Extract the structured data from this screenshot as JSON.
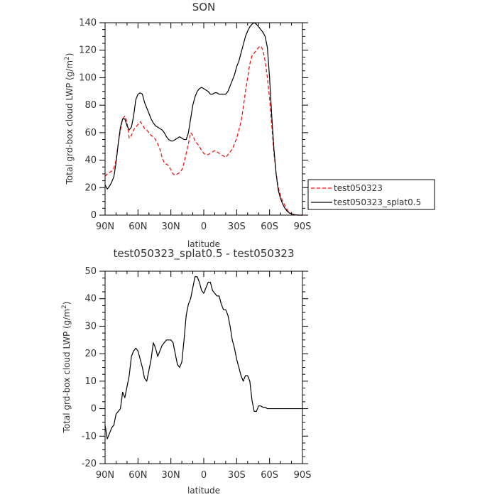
{
  "chart_data": [
    {
      "type": "line",
      "title": "SON",
      "xlabel": "latitude",
      "ylabel": "Total grd-box cloud LWP (g/m",
      "ylabel_sup": "2",
      "ylabel_end": ")",
      "xlim": [
        -90,
        90
      ],
      "ylim": [
        0,
        140
      ],
      "x_ticks": [
        -90,
        -60,
        -30,
        0,
        30,
        60,
        90
      ],
      "x_tick_labels": [
        "90N",
        "60N",
        "30N",
        "0",
        "30S",
        "60S",
        "90S"
      ],
      "y_ticks": [
        0,
        20,
        40,
        60,
        80,
        100,
        120,
        140
      ],
      "y_tick_labels": [
        "0",
        "20",
        "40",
        "60",
        "80",
        "100",
        "120",
        "140"
      ],
      "legend": "outside-right",
      "series": [
        {
          "name": "test050323",
          "color": "#ff0000",
          "dash": "dashed",
          "x": [
            -90,
            -88,
            -86,
            -84,
            -82,
            -80,
            -78,
            -76,
            -74,
            -72,
            -70,
            -68,
            -66,
            -64,
            -62,
            -60,
            -58,
            -56,
            -54,
            -52,
            -50,
            -48,
            -46,
            -44,
            -42,
            -40,
            -38,
            -36,
            -34,
            -32,
            -30,
            -28,
            -26,
            -24,
            -22,
            -20,
            -18,
            -16,
            -14,
            -12,
            -10,
            -8,
            -6,
            -4,
            -2,
            0,
            2,
            4,
            6,
            8,
            10,
            12,
            14,
            16,
            18,
            20,
            22,
            24,
            26,
            28,
            30,
            32,
            34,
            36,
            38,
            40,
            42,
            44,
            46,
            48,
            50,
            52,
            54,
            56,
            58,
            60,
            62,
            64,
            66,
            68,
            70,
            72,
            74,
            76,
            78,
            80,
            82,
            84,
            86,
            88,
            90
          ],
          "y": [
            28,
            30,
            31,
            32,
            34,
            40,
            52,
            62,
            70,
            72,
            68,
            56,
            58,
            62,
            64,
            66,
            68,
            66,
            63,
            62,
            60,
            58,
            57,
            55,
            52,
            48,
            42,
            38,
            37,
            36,
            33,
            30,
            29,
            30,
            31,
            33,
            38,
            45,
            52,
            60,
            58,
            54,
            52,
            50,
            47,
            45,
            44,
            44,
            45,
            46,
            47,
            46,
            45,
            44,
            43,
            42,
            44,
            46,
            48,
            52,
            56,
            62,
            68,
            78,
            90,
            100,
            110,
            116,
            118,
            120,
            122,
            123,
            120,
            112,
            100,
            85,
            65,
            45,
            30,
            20,
            14,
            10,
            7,
            4,
            2,
            1,
            0.5,
            0.2,
            0,
            0,
            0
          ]
        },
        {
          "name": "test050323_splat0.5",
          "color": "#000000",
          "dash": "solid",
          "x": [
            -90,
            -88,
            -86,
            -84,
            -82,
            -80,
            -78,
            -76,
            -74,
            -72,
            -70,
            -68,
            -66,
            -64,
            -62,
            -60,
            -58,
            -56,
            -54,
            -52,
            -50,
            -48,
            -46,
            -44,
            -42,
            -40,
            -38,
            -36,
            -34,
            -32,
            -30,
            -28,
            -26,
            -24,
            -22,
            -20,
            -18,
            -16,
            -14,
            -12,
            -10,
            -8,
            -6,
            -4,
            -2,
            0,
            2,
            4,
            6,
            8,
            10,
            12,
            14,
            16,
            18,
            20,
            22,
            24,
            26,
            28,
            30,
            32,
            34,
            36,
            38,
            40,
            42,
            44,
            46,
            48,
            50,
            52,
            54,
            56,
            58,
            60,
            62,
            64,
            66,
            68,
            70,
            72,
            74,
            76,
            78,
            80,
            82,
            84,
            86,
            88,
            90
          ],
          "y": [
            22,
            19,
            21,
            24,
            28,
            38,
            52,
            64,
            70,
            70,
            65,
            62,
            64,
            72,
            84,
            88,
            89,
            88,
            82,
            78,
            74,
            70,
            67,
            65,
            64,
            63,
            62,
            60,
            57,
            55,
            54,
            54,
            55,
            56,
            57,
            56,
            55,
            55,
            60,
            70,
            80,
            86,
            90,
            92,
            93,
            92,
            91,
            90,
            88,
            88,
            89,
            89,
            88,
            88,
            88,
            88,
            90,
            94,
            98,
            102,
            108,
            112,
            118,
            124,
            130,
            134,
            137,
            139,
            140,
            139,
            137,
            135,
            133,
            130,
            122,
            100,
            72,
            48,
            30,
            18,
            12,
            8,
            5,
            3,
            1.5,
            1,
            0.5,
            0.2,
            0,
            0,
            0
          ]
        }
      ]
    },
    {
      "type": "line",
      "title": "test050323_splat0.5 - test050323",
      "xlabel": "latitude",
      "ylabel": "Total grd-box cloud LWP (g/m",
      "ylabel_sup": "2",
      "ylabel_end": ")",
      "xlim": [
        -90,
        90
      ],
      "ylim": [
        -20,
        50
      ],
      "x_ticks": [
        -90,
        -60,
        -30,
        0,
        30,
        60,
        90
      ],
      "x_tick_labels": [
        "90N",
        "60N",
        "30N",
        "0",
        "30S",
        "60S",
        "90S"
      ],
      "y_ticks": [
        -20,
        -10,
        0,
        10,
        20,
        30,
        40,
        50
      ],
      "y_tick_labels": [
        "-20",
        "-10",
        "0",
        "10",
        "20",
        "30",
        "40",
        "50"
      ],
      "series": [
        {
          "color": "#000000",
          "dash": "solid",
          "x": [
            -90,
            -88,
            -86,
            -84,
            -82,
            -80,
            -78,
            -76,
            -74,
            -72,
            -70,
            -68,
            -66,
            -64,
            -62,
            -60,
            -58,
            -56,
            -54,
            -52,
            -50,
            -48,
            -46,
            -44,
            -42,
            -40,
            -38,
            -36,
            -34,
            -32,
            -30,
            -28,
            -26,
            -24,
            -22,
            -20,
            -18,
            -16,
            -14,
            -12,
            -10,
            -8,
            -6,
            -4,
            -2,
            0,
            2,
            4,
            6,
            8,
            10,
            12,
            14,
            16,
            18,
            20,
            22,
            24,
            26,
            28,
            30,
            32,
            34,
            36,
            38,
            40,
            42,
            44,
            46,
            48,
            50,
            52,
            54,
            56,
            58,
            60,
            62,
            64,
            66,
            68,
            70,
            72,
            74,
            76,
            78,
            80,
            82,
            84,
            86,
            88,
            90
          ],
          "y": [
            -6,
            -11,
            -9,
            -7,
            -6,
            -2,
            -1,
            0,
            6,
            4,
            8,
            12,
            19,
            21,
            22,
            21,
            18,
            15,
            11,
            10,
            14,
            18,
            24,
            22,
            19,
            21,
            23,
            24,
            25,
            25,
            25,
            24,
            20,
            16,
            15,
            17,
            25,
            34,
            38,
            40,
            44,
            48,
            48,
            46,
            43,
            42,
            44,
            46,
            46,
            43,
            42,
            41,
            41,
            38,
            36,
            36,
            34,
            30,
            25,
            22,
            18,
            15,
            12,
            10,
            12,
            12,
            10,
            3,
            -1,
            -1,
            1,
            1,
            0.5,
            0.5,
            0,
            0,
            0,
            0,
            0,
            0,
            0,
            0,
            0,
            0,
            0,
            0,
            0,
            0,
            0,
            0,
            0
          ]
        }
      ]
    }
  ]
}
